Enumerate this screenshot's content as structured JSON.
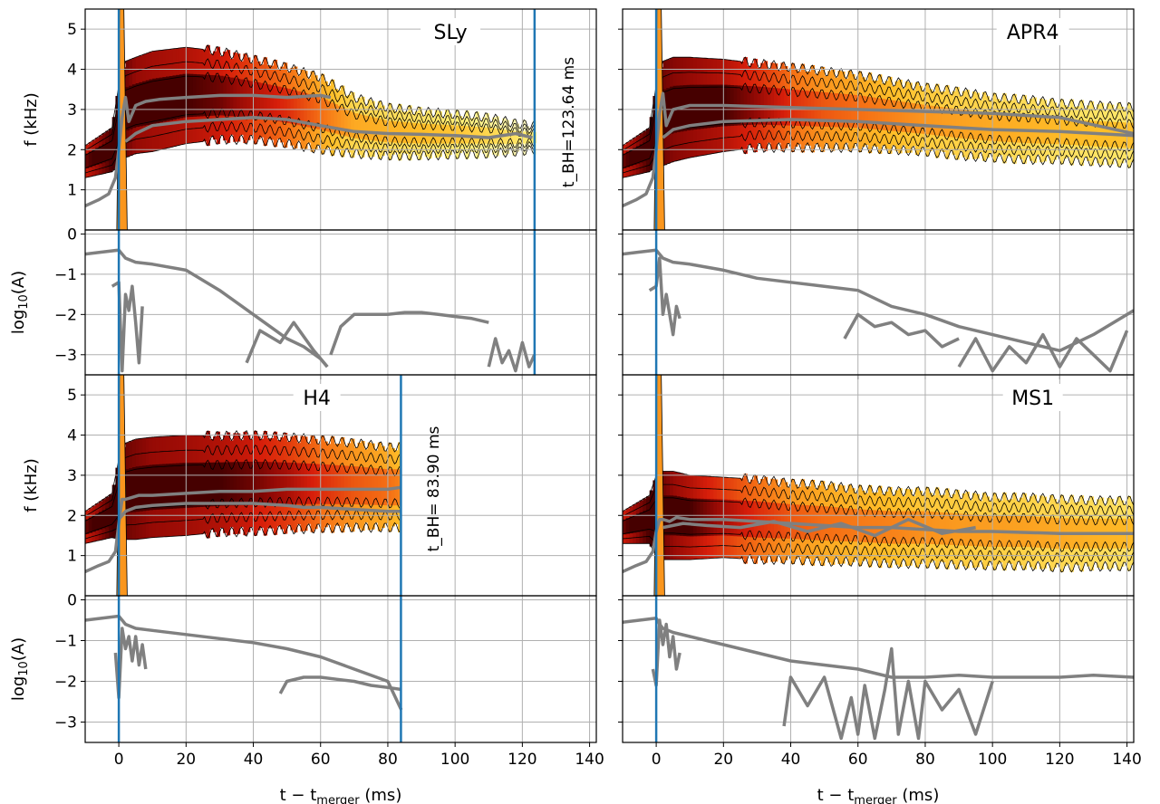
{
  "chart_data": [
    {
      "panel": "SLy",
      "type": "heatmap",
      "title": "SLy",
      "tbh_label": "t_BH=123.64 ms",
      "tbh": 123.64,
      "xlim": [
        -10,
        142
      ],
      "freq_ylim": [
        0,
        5.5
      ],
      "amp_ylim": [
        -3.5,
        0.1
      ],
      "merger_line": 0,
      "band": {
        "t": [
          -10,
          -2,
          0,
          2,
          5,
          10,
          20,
          30,
          40,
          50,
          60,
          70,
          80,
          90,
          100,
          110,
          118,
          123.6
        ],
        "center": [
          1.7,
          2.0,
          2.6,
          3.0,
          3.1,
          3.2,
          3.35,
          3.35,
          3.25,
          3.1,
          2.9,
          2.6,
          2.45,
          2.4,
          2.38,
          2.35,
          2.3,
          2.3
        ],
        "half": [
          0.4,
          0.55,
          1.0,
          1.2,
          1.2,
          1.25,
          1.2,
          1.1,
          1.0,
          0.95,
          0.9,
          0.7,
          0.6,
          0.55,
          0.5,
          0.45,
          0.35,
          0.3
        ],
        "intensity": [
          0.8,
          1.0,
          1.0,
          0.95,
          0.9,
          0.88,
          0.85,
          0.8,
          0.7,
          0.6,
          0.45,
          0.3,
          0.28,
          0.25,
          0.22,
          0.15,
          0.1,
          0.05
        ]
      },
      "freq_series": [
        {
          "t": [
            -10,
            -6,
            -3,
            -1,
            0,
            1,
            2,
            3,
            5,
            8,
            12,
            20,
            30,
            40,
            50,
            60,
            63
          ],
          "f": [
            0.6,
            0.75,
            0.9,
            1.3,
            2.0,
            2.8,
            3.3,
            2.7,
            3.1,
            3.2,
            3.25,
            3.3,
            3.35,
            3.35,
            3.3,
            3.35,
            3.3
          ]
        },
        {
          "t": [
            2,
            5,
            10,
            20,
            30,
            40,
            50,
            60,
            70,
            80,
            90,
            100,
            110,
            118,
            123
          ],
          "f": [
            2.2,
            2.4,
            2.6,
            2.7,
            2.75,
            2.8,
            2.75,
            2.6,
            2.45,
            2.4,
            2.38,
            2.35,
            2.3,
            2.4,
            2.3
          ]
        }
      ],
      "amp_series": [
        {
          "t": [
            -10,
            -5,
            0,
            1,
            2,
            5,
            10,
            20,
            30,
            40,
            45,
            50,
            55,
            60,
            62
          ],
          "a": [
            -0.5,
            -0.45,
            -0.4,
            -0.5,
            -0.6,
            -0.7,
            -0.75,
            -0.9,
            -1.4,
            -2.0,
            -2.3,
            -2.6,
            -2.8,
            -3.1,
            -3.3
          ]
        },
        {
          "t": [
            -2,
            0,
            1,
            2,
            3,
            4,
            5,
            6,
            7
          ],
          "a": [
            -1.3,
            -1.2,
            -3.4,
            -1.5,
            -1.9,
            -1.3,
            -2.2,
            -3.2,
            -1.8
          ]
        },
        {
          "t": [
            38,
            42,
            48,
            52,
            58,
            62
          ],
          "a": [
            -3.2,
            -2.4,
            -2.7,
            -2.2,
            -2.9,
            -3.3
          ]
        },
        {
          "t": [
            63,
            66,
            70,
            75,
            80,
            85,
            90,
            95,
            100,
            105,
            110
          ],
          "a": [
            -3.0,
            -2.3,
            -2.0,
            -2.0,
            -2.0,
            -1.95,
            -1.95,
            -2.0,
            -2.05,
            -2.1,
            -2.2
          ]
        },
        {
          "t": [
            110,
            112,
            114,
            116,
            118,
            120,
            122,
            123.6
          ],
          "a": [
            -3.3,
            -2.6,
            -3.2,
            -2.9,
            -3.4,
            -2.7,
            -3.3,
            -3.0
          ]
        }
      ]
    },
    {
      "panel": "APR4",
      "type": "heatmap",
      "title": "APR4",
      "xlim": [
        -10,
        142
      ],
      "freq_ylim": [
        0,
        5.5
      ],
      "amp_ylim": [
        -3.5,
        0.1
      ],
      "merger_line": 0,
      "band": {
        "t": [
          -10,
          -2,
          0,
          2,
          5,
          10,
          20,
          30,
          40,
          50,
          60,
          70,
          80,
          90,
          100,
          110,
          120,
          130,
          142
        ],
        "center": [
          1.7,
          2.0,
          2.6,
          2.9,
          3.0,
          3.05,
          3.1,
          3.1,
          3.05,
          3.0,
          2.95,
          2.85,
          2.75,
          2.65,
          2.55,
          2.5,
          2.45,
          2.4,
          2.35
        ],
        "half": [
          0.4,
          0.55,
          1.0,
          1.3,
          1.3,
          1.25,
          1.15,
          1.05,
          1.0,
          0.95,
          0.9,
          0.85,
          0.8,
          0.8,
          0.75,
          0.75,
          0.7,
          0.7,
          0.7
        ],
        "intensity": [
          0.8,
          1.0,
          1.0,
          0.95,
          0.92,
          0.9,
          0.85,
          0.75,
          0.6,
          0.5,
          0.45,
          0.4,
          0.35,
          0.32,
          0.3,
          0.28,
          0.26,
          0.25,
          0.24
        ]
      },
      "freq_series": [
        {
          "t": [
            -10,
            -6,
            -3,
            -1,
            0,
            1,
            2,
            3,
            5,
            10,
            20,
            40,
            60,
            80,
            100,
            120,
            142
          ],
          "f": [
            0.6,
            0.75,
            0.9,
            1.3,
            2.0,
            2.9,
            3.4,
            2.6,
            3.0,
            3.1,
            3.1,
            3.05,
            3.0,
            2.95,
            2.9,
            2.8,
            2.4
          ]
        },
        {
          "t": [
            2,
            5,
            10,
            20,
            40,
            60,
            80,
            100,
            120,
            142
          ],
          "f": [
            2.3,
            2.5,
            2.6,
            2.7,
            2.75,
            2.7,
            2.6,
            2.5,
            2.45,
            2.35
          ]
        }
      ],
      "amp_series": [
        {
          "t": [
            -10,
            -5,
            0,
            1,
            2,
            5,
            10,
            20,
            30,
            40,
            50,
            60,
            70,
            80,
            90,
            100,
            110,
            120,
            130,
            142
          ],
          "a": [
            -0.5,
            -0.45,
            -0.4,
            -0.5,
            -0.6,
            -0.7,
            -0.75,
            -0.9,
            -1.1,
            -1.2,
            -1.3,
            -1.4,
            -1.8,
            -2.0,
            -2.3,
            -2.5,
            -2.7,
            -2.9,
            -2.5,
            -1.9
          ]
        },
        {
          "t": [
            -2,
            0,
            1,
            2,
            3,
            5,
            6,
            7
          ],
          "a": [
            -1.4,
            -1.3,
            -0.6,
            -2.0,
            -1.5,
            -2.5,
            -1.8,
            -2.1
          ]
        },
        {
          "t": [
            56,
            60,
            65,
            70,
            75,
            80,
            85,
            90
          ],
          "a": [
            -2.6,
            -2.0,
            -2.3,
            -2.2,
            -2.5,
            -2.4,
            -2.8,
            -2.6
          ]
        },
        {
          "t": [
            90,
            95,
            100,
            105,
            110,
            115,
            120,
            125,
            130,
            135,
            140
          ],
          "a": [
            -3.3,
            -2.6,
            -3.4,
            -2.8,
            -3.2,
            -2.5,
            -3.3,
            -2.6,
            -3.0,
            -3.4,
            -2.4
          ]
        }
      ]
    },
    {
      "panel": "H4",
      "type": "heatmap",
      "title": "H4",
      "tbh_label": "t_BH= 83.90 ms",
      "tbh": 83.9,
      "xlim": [
        -10,
        142
      ],
      "freq_ylim": [
        0,
        5.5
      ],
      "amp_ylim": [
        -3.5,
        0.1
      ],
      "merger_line": 0,
      "band": {
        "t": [
          -10,
          -2,
          0,
          2,
          5,
          10,
          20,
          30,
          40,
          50,
          60,
          70,
          80,
          83.9
        ],
        "center": [
          1.7,
          2.0,
          2.4,
          2.6,
          2.65,
          2.7,
          2.75,
          2.78,
          2.8,
          2.8,
          2.78,
          2.75,
          2.7,
          2.7
        ],
        "half": [
          0.4,
          0.55,
          1.0,
          1.2,
          1.25,
          1.25,
          1.25,
          1.2,
          1.2,
          1.15,
          1.1,
          1.05,
          1.0,
          1.0
        ],
        "intensity": [
          0.8,
          1.0,
          1.0,
          0.95,
          0.93,
          0.9,
          0.88,
          0.85,
          0.8,
          0.72,
          0.6,
          0.5,
          0.45,
          0.4
        ]
      },
      "freq_series": [
        {
          "t": [
            -10,
            -6,
            -3,
            -1,
            0,
            1,
            2,
            4,
            6,
            10,
            20,
            30,
            40,
            50,
            60,
            70,
            80,
            84
          ],
          "f": [
            0.6,
            0.75,
            0.85,
            1.1,
            1.8,
            2.4,
            2.4,
            2.45,
            2.5,
            2.5,
            2.55,
            2.6,
            2.6,
            2.65,
            2.65,
            2.65,
            2.65,
            2.7
          ]
        },
        {
          "t": [
            0,
            2,
            5,
            10,
            20,
            30,
            40,
            50,
            55,
            60,
            70,
            80,
            84
          ],
          "f": [
            1.9,
            2.1,
            2.2,
            2.25,
            2.3,
            2.3,
            2.3,
            2.25,
            2.2,
            2.2,
            2.15,
            2.1,
            2.1
          ]
        }
      ],
      "amp_series": [
        {
          "t": [
            -10,
            -5,
            0,
            1,
            2,
            5,
            10,
            20,
            30,
            40,
            50,
            60,
            70,
            80,
            84
          ],
          "a": [
            -0.5,
            -0.45,
            -0.4,
            -0.5,
            -0.6,
            -0.7,
            -0.75,
            -0.85,
            -0.95,
            -1.05,
            -1.2,
            -1.4,
            -1.7,
            -2.0,
            -2.7
          ]
        },
        {
          "t": [
            -1,
            0,
            1,
            2,
            3,
            4,
            5,
            6,
            7,
            8
          ],
          "a": [
            -1.3,
            -2.4,
            -0.7,
            -1.2,
            -0.9,
            -1.5,
            -0.9,
            -1.6,
            -1.1,
            -1.7
          ]
        },
        {
          "t": [
            48,
            50,
            55,
            60,
            65,
            70,
            75,
            80,
            84
          ],
          "a": [
            -2.3,
            -2.0,
            -1.9,
            -1.9,
            -1.95,
            -2.0,
            -2.1,
            -2.15,
            -2.2
          ]
        }
      ]
    },
    {
      "panel": "MS1",
      "type": "heatmap",
      "title": "MS1",
      "xlim": [
        -10,
        142
      ],
      "freq_ylim": [
        0,
        5.5
      ],
      "amp_ylim": [
        -3.5,
        0.1
      ],
      "merger_line": 0,
      "band": {
        "t": [
          -10,
          -2,
          0,
          2,
          5,
          10,
          20,
          30,
          40,
          50,
          60,
          70,
          80,
          90,
          100,
          110,
          120,
          130,
          142
        ],
        "center": [
          1.7,
          1.9,
          2.0,
          2.0,
          2.0,
          1.95,
          1.95,
          1.9,
          1.85,
          1.8,
          1.75,
          1.7,
          1.7,
          1.65,
          1.6,
          1.6,
          1.55,
          1.55,
          1.55
        ],
        "half": [
          0.4,
          0.6,
          1.0,
          1.1,
          1.1,
          1.05,
          1.0,
          1.0,
          0.95,
          0.95,
          0.9,
          0.9,
          0.9,
          0.88,
          0.85,
          0.85,
          0.85,
          0.82,
          0.82
        ],
        "intensity": [
          0.8,
          1.0,
          1.0,
          0.95,
          0.9,
          0.85,
          0.72,
          0.6,
          0.5,
          0.45,
          0.42,
          0.4,
          0.36,
          0.34,
          0.33,
          0.32,
          0.3,
          0.28,
          0.26
        ]
      },
      "freq_series": [
        {
          "t": [
            -10,
            -6,
            -3,
            -1,
            0,
            1,
            2,
            4,
            6,
            10,
            20,
            30,
            40,
            50,
            60,
            70,
            80,
            90,
            100,
            120,
            142
          ],
          "f": [
            0.6,
            0.75,
            0.85,
            1.1,
            1.6,
            1.9,
            1.9,
            1.85,
            1.95,
            1.9,
            1.9,
            1.85,
            1.8,
            1.75,
            1.7,
            1.7,
            1.65,
            1.6,
            1.6,
            1.55,
            1.55
          ]
        },
        {
          "t": [
            2,
            8,
            15,
            25,
            35,
            45,
            55,
            65,
            75,
            85,
            95
          ],
          "f": [
            1.7,
            1.8,
            1.75,
            1.7,
            1.85,
            1.6,
            1.8,
            1.5,
            1.9,
            1.55,
            1.7
          ]
        }
      ],
      "amp_series": [
        {
          "t": [
            -10,
            -5,
            0,
            1,
            2,
            5,
            10,
            20,
            30,
            40,
            50,
            60,
            70,
            80,
            90,
            100,
            110,
            120,
            130,
            142
          ],
          "a": [
            -0.55,
            -0.5,
            -0.45,
            -0.6,
            -0.7,
            -0.8,
            -0.9,
            -1.1,
            -1.3,
            -1.5,
            -1.6,
            -1.7,
            -1.9,
            -1.9,
            -1.85,
            -1.9,
            -1.9,
            -1.9,
            -1.85,
            -1.9
          ]
        },
        {
          "t": [
            -1,
            0,
            1,
            2,
            3,
            4,
            5,
            6,
            7
          ],
          "a": [
            -1.7,
            -2.1,
            -0.5,
            -1.1,
            -0.6,
            -1.4,
            -0.9,
            -1.7,
            -1.3
          ]
        },
        {
          "t": [
            38,
            40,
            45,
            50,
            55,
            58,
            60,
            62,
            65,
            68,
            70,
            72,
            75,
            78,
            80,
            85,
            90,
            95,
            100
          ],
          "a": [
            -3.1,
            -1.9,
            -2.6,
            -1.9,
            -3.4,
            -2.4,
            -3.3,
            -2.1,
            -3.4,
            -2.2,
            -1.2,
            -3.3,
            -2.0,
            -3.4,
            -2.0,
            -2.7,
            -2.2,
            -3.3,
            -2.0
          ]
        }
      ]
    }
  ],
  "axes": {
    "x_label": "t − t",
    "x_label_sub": "merger",
    "x_label_unit": " (ms)",
    "f_label": "f (kHz)",
    "amp_label": "log",
    "amp_label_sub": "10",
    "amp_label_arg": "(A)",
    "x_ticks": [
      0,
      20,
      40,
      60,
      80,
      100,
      120,
      140
    ],
    "f_ticks": [
      1,
      2,
      3,
      4,
      5
    ],
    "amp_ticks": [
      0,
      -1,
      -2,
      -3
    ]
  },
  "colors": {
    "merger_line": "#1f77b4",
    "tbh_line": "#1f77b4",
    "track": "#808080",
    "grid": "#b0b0b0"
  }
}
